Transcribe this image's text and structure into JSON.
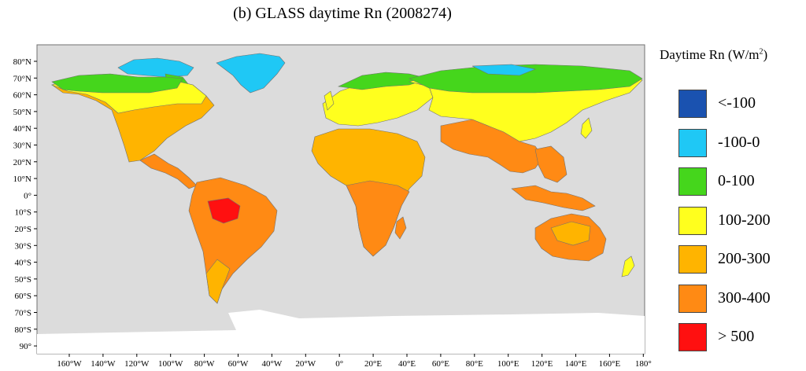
{
  "title": "(b)   GLASS daytime Rn (2008274)",
  "legend": {
    "title": "Daytime Rn (W/m",
    "title_sup": "2",
    "title_close": ")",
    "items": [
      {
        "label": "<-100",
        "color": "#1a52b0"
      },
      {
        "label": "-100-0",
        "color": "#1fc8f5"
      },
      {
        "label": "0-100",
        "color": "#45d61c"
      },
      {
        "label": "100-200",
        "color": "#ffff1e"
      },
      {
        "label": "200-300",
        "color": "#ffb400"
      },
      {
        "label": "300-400",
        "color": "#ff8a14"
      },
      {
        "label": "> 500",
        "color": "#ff1010"
      }
    ]
  },
  "axes": {
    "lat_labels": [
      "80°N",
      "70°N",
      "60°N",
      "50°N",
      "40°N",
      "30°N",
      "20°N",
      "10°N",
      "0°",
      "10°S",
      "20°S",
      "30°S",
      "40°S",
      "50°S",
      "60°S",
      "70°S",
      "80°S",
      "90°"
    ],
    "lon_labels": [
      "160°W",
      "140°W",
      "120°W",
      "100°W",
      "80°W",
      "60°W",
      "40°W",
      "20°W",
      "0°",
      "20°E",
      "40°E",
      "60°E",
      "80°E",
      "100°E",
      "120°E",
      "140°E",
      "160°E",
      "180°"
    ]
  },
  "colors": {
    "ocean": "#dcdcdc",
    "antarctica": "#ffffff",
    "border": "#707070"
  }
}
